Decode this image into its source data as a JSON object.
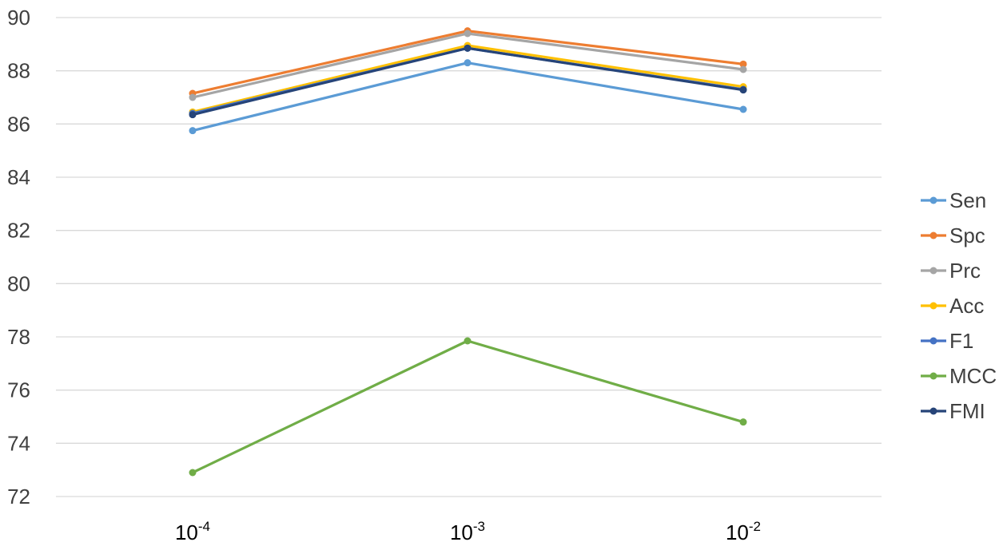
{
  "chart_data": {
    "type": "line",
    "title": "",
    "xlabel": "",
    "ylabel": "",
    "categories": [
      {
        "base": "10",
        "exp": "-4"
      },
      {
        "base": "10",
        "exp": "-3"
      },
      {
        "base": "10",
        "exp": "-2"
      }
    ],
    "ylim": [
      72,
      90
    ],
    "yticks": [
      72,
      74,
      76,
      78,
      80,
      82,
      84,
      86,
      88,
      90
    ],
    "grid": true,
    "legend_position": "right",
    "series": [
      {
        "name": "Sen",
        "color": "#5B9BD5",
        "values": [
          85.75,
          88.3,
          86.55
        ]
      },
      {
        "name": "Spc",
        "color": "#ED7D31",
        "values": [
          87.15,
          89.5,
          88.25
        ]
      },
      {
        "name": "Prc",
        "color": "#A5A5A5",
        "values": [
          87.0,
          89.4,
          88.05
        ]
      },
      {
        "name": "Acc",
        "color": "#FFC000",
        "values": [
          86.45,
          88.95,
          87.4
        ]
      },
      {
        "name": "F1",
        "color": "#4472C4",
        "values": [
          86.4,
          88.85,
          87.3
        ]
      },
      {
        "name": "MCC",
        "color": "#70AD47",
        "values": [
          72.9,
          77.85,
          74.8
        ]
      },
      {
        "name": "FMI",
        "color": "#264478",
        "values": [
          86.35,
          88.85,
          87.28
        ]
      }
    ]
  }
}
